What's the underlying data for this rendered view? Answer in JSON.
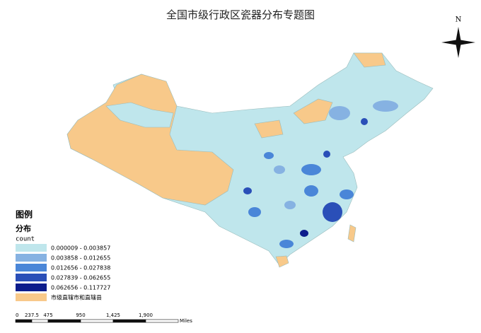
{
  "title": "全国市级行政区瓷器分布专题图",
  "north": "N",
  "legend": {
    "title": "图例",
    "subtitle": "分布",
    "field": "count",
    "items": [
      {
        "label": "0.000009 - 0.003857",
        "color": "#bfe6ec"
      },
      {
        "label": "0.003858 - 0.012655",
        "color": "#86b2e2"
      },
      {
        "label": "0.012656 - 0.027838",
        "color": "#4a86d8"
      },
      {
        "label": "0.027839 - 0.062655",
        "color": "#2a4fb8"
      },
      {
        "label": "0.062656 - 0.117727",
        "color": "#0c1c8c"
      },
      {
        "label": "市级直辖市和直辖县",
        "color": "#f8c98a"
      }
    ]
  },
  "scale_bar": {
    "labels": [
      "0",
      "237.5",
      "475",
      "950",
      "1,425",
      "1,900"
    ],
    "unit": "Miles"
  }
}
